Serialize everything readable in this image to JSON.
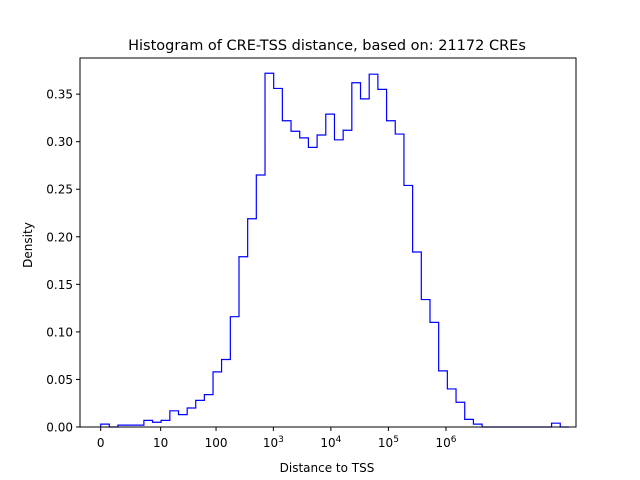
{
  "chart_data": {
    "type": "step-histogram",
    "title": "Histogram of CRE-TSS distance, based on: 21172 CREs",
    "xlabel": "Distance to TSS",
    "ylabel": "Density",
    "x_scale": "log(1+x)",
    "x_ticks": [
      {
        "value": 0,
        "label": "0"
      },
      {
        "value": 10,
        "label": "10"
      },
      {
        "value": 100,
        "label": "100"
      },
      {
        "value": 1000,
        "label": "10",
        "exp": "3"
      },
      {
        "value": 10000,
        "label": "10",
        "exp": "4"
      },
      {
        "value": 100000,
        "label": "10",
        "exp": "5"
      },
      {
        "value": 1000000,
        "label": "10",
        "exp": "6"
      }
    ],
    "y_ticks": [
      "0.00",
      "0.05",
      "0.10",
      "0.15",
      "0.20",
      "0.25",
      "0.30",
      "0.35"
    ],
    "ylim": [
      0,
      0.388
    ],
    "series_color": "#0000ff",
    "bins": [
      {
        "x0": 0,
        "x1": 0.41,
        "density": 0.003
      },
      {
        "x0": 0.41,
        "x1": 0.99,
        "density": 0.0
      },
      {
        "x0": 0.99,
        "x1": 1.81,
        "density": 0.002
      },
      {
        "x0": 1.81,
        "x1": 2.98,
        "density": 0.002
      },
      {
        "x0": 2.98,
        "x1": 4.63,
        "density": 0.002
      },
      {
        "x0": 4.63,
        "x1": 6.96,
        "density": 0.007
      },
      {
        "x0": 6.96,
        "x1": 10.2,
        "density": 0.005
      },
      {
        "x0": 10.2,
        "x1": 14.9,
        "density": 0.007
      },
      {
        "x0": 14.9,
        "x1": 21.5,
        "density": 0.017
      },
      {
        "x0": 21.5,
        "x1": 30.8,
        "density": 0.013
      },
      {
        "x0": 30.8,
        "x1": 43.8,
        "density": 0.02
      },
      {
        "x0": 43.8,
        "x1": 62.3,
        "density": 0.028
      },
      {
        "x0": 62.3,
        "x1": 88.5,
        "density": 0.034
      },
      {
        "x0": 88.5,
        "x1": 125,
        "density": 0.058
      },
      {
        "x0": 125,
        "x1": 178,
        "density": 0.071
      },
      {
        "x0": 178,
        "x1": 252,
        "density": 0.116
      },
      {
        "x0": 252,
        "x1": 357,
        "density": 0.179
      },
      {
        "x0": 357,
        "x1": 505,
        "density": 0.219
      },
      {
        "x0": 505,
        "x1": 716,
        "density": 0.265
      },
      {
        "x0": 716,
        "x1": 1013,
        "density": 0.372
      },
      {
        "x0": 1013,
        "x1": 1434,
        "density": 0.356
      },
      {
        "x0": 1434,
        "x1": 2030,
        "density": 0.322
      },
      {
        "x0": 2030,
        "x1": 2874,
        "density": 0.311
      },
      {
        "x0": 2874,
        "x1": 4069,
        "density": 0.304
      },
      {
        "x0": 4069,
        "x1": 5760,
        "density": 0.294
      },
      {
        "x0": 5760,
        "x1": 8154,
        "density": 0.307
      },
      {
        "x0": 8154,
        "x1": 11542,
        "density": 0.329
      },
      {
        "x0": 11542,
        "x1": 16339,
        "density": 0.302
      },
      {
        "x0": 16339,
        "x1": 23128,
        "density": 0.312
      },
      {
        "x0": 23128,
        "x1": 32740,
        "density": 0.362
      },
      {
        "x0": 32740,
        "x1": 46345,
        "density": 0.345
      },
      {
        "x0": 46345,
        "x1": 65604,
        "density": 0.371
      },
      {
        "x0": 65604,
        "x1": 92866,
        "density": 0.355
      },
      {
        "x0": 92866,
        "x1": 131457,
        "density": 0.322
      },
      {
        "x0": 131457,
        "x1": 186085,
        "density": 0.308
      },
      {
        "x0": 186085,
        "x1": 263414,
        "density": 0.254
      },
      {
        "x0": 263414,
        "x1": 372875,
        "density": 0.184
      },
      {
        "x0": 372875,
        "x1": 527823,
        "density": 0.134
      },
      {
        "x0": 527823,
        "x1": 747157,
        "density": 0.11
      },
      {
        "x0": 747157,
        "x1": 1057635,
        "density": 0.059
      },
      {
        "x0": 1057635,
        "x1": 1497137,
        "density": 0.04
      },
      {
        "x0": 1497137,
        "x1": 2119279,
        "density": 0.026
      },
      {
        "x0": 2119279,
        "x1": 2999955,
        "density": 0.008
      },
      {
        "x0": 2999955,
        "x1": 4246591,
        "density": 0.003
      },
      {
        "x0": 4246591,
        "x1": 6011262,
        "density": 0.0
      },
      {
        "x0": 6011262,
        "x1": 8509258,
        "density": 0.0
      },
      {
        "x0": 8509258,
        "x1": 12045262,
        "density": 0.0
      },
      {
        "x0": 12045262,
        "x1": 17050653,
        "density": 0.0
      },
      {
        "x0": 17050653,
        "x1": 24136018,
        "density": 0.0
      },
      {
        "x0": 24136018,
        "x1": 34165679,
        "density": 0.0
      },
      {
        "x0": 34165679,
        "x1": 48363205,
        "density": 0.0
      },
      {
        "x0": 48363205,
        "x1": 68460483,
        "density": 0.0
      },
      {
        "x0": 68460483,
        "x1": 96909250,
        "density": 0.004
      },
      {
        "x0": 96909250,
        "x1": 137180000,
        "density": 0.0
      }
    ]
  }
}
